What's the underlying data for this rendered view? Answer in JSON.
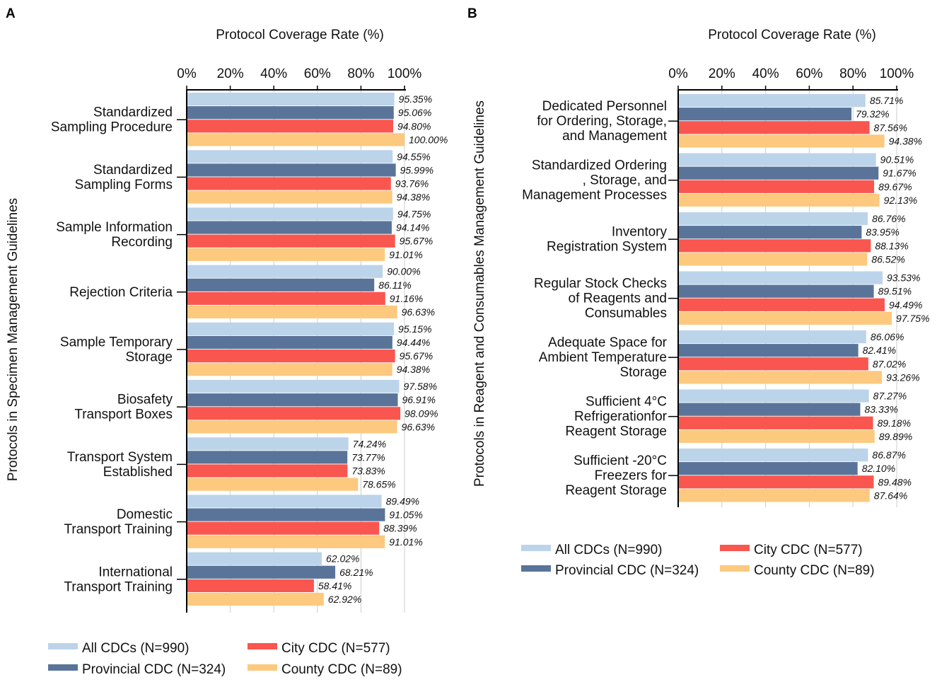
{
  "colors": {
    "all": "#bcd4ea",
    "provincial": "#5a7499",
    "city": "#f9564f",
    "county": "#fcc97f",
    "axis": "#000000",
    "grid": "#cccccc"
  },
  "chart_data": [
    {
      "type": "bar",
      "orientation": "horizontal",
      "panel": "A",
      "title": "Protocol Coverage Rate (%)",
      "xlabel": "Protocol Coverage Rate (%)",
      "ylabel": "Protocols in Specimen Management Guidelines",
      "xlim": [
        0,
        100
      ],
      "xticks": [
        "0%",
        "20%",
        "40%",
        "60%",
        "80%",
        "100%"
      ],
      "grid": true,
      "legend_position": "bottom",
      "categories": [
        [
          "Standardized",
          "Sampling Procedure"
        ],
        [
          "Standardized",
          "Sampling Forms"
        ],
        [
          "Sample Information",
          "Recording"
        ],
        [
          "Rejection Criteria"
        ],
        [
          "Sample Temporary",
          "Storage"
        ],
        [
          "Biosafety",
          "Transport Boxes"
        ],
        [
          "Transport System",
          "Established"
        ],
        [
          "Domestic",
          "Transport Training"
        ],
        [
          "International",
          "Transport Training"
        ]
      ],
      "series": [
        {
          "key": "all",
          "name": "All CDCs (N=990)",
          "values": [
            95.35,
            94.55,
            94.75,
            90.0,
            95.15,
            97.58,
            74.24,
            89.49,
            62.02
          ],
          "labels": [
            "95.35%",
            "94.55%",
            "94.75%",
            "90.00%",
            "95.15%",
            "97.58%",
            "74.24%",
            "89.49%",
            "62.02%"
          ]
        },
        {
          "key": "provincial",
          "name": "Provincial CDC (N=324)",
          "values": [
            95.06,
            95.99,
            94.14,
            86.11,
            94.44,
            96.91,
            73.77,
            91.05,
            68.21
          ],
          "labels": [
            "95.06%",
            "95.99%",
            "94.14%",
            "86.11%",
            "94.44%",
            "96.91%",
            "73.77%",
            "91.05%",
            "68.21%"
          ]
        },
        {
          "key": "city",
          "name": "City CDC (N=577)",
          "values": [
            94.8,
            93.76,
            95.67,
            91.16,
            95.67,
            98.09,
            73.83,
            88.39,
            58.41
          ],
          "labels": [
            "94.80%",
            "93.76%",
            "95.67%",
            "91.16%",
            "95.67%",
            "98.09%",
            "73.83%",
            "88.39%",
            "58.41%"
          ]
        },
        {
          "key": "county",
          "name": "County CDC (N=89)",
          "values": [
            100.0,
            94.38,
            91.01,
            96.63,
            94.38,
            96.63,
            78.65,
            91.01,
            62.92
          ],
          "labels": [
            "100.00%",
            "94.38%",
            "91.01%",
            "96.63%",
            "94.38%",
            "96.63%",
            "78.65%",
            "91.01%",
            "62.92%"
          ]
        }
      ]
    },
    {
      "type": "bar",
      "orientation": "horizontal",
      "panel": "B",
      "title": "Protocol Coverage Rate  (%)",
      "xlabel": "Protocol Coverage Rate  (%)",
      "ylabel": "Protocols in Reagent and Consumables Management Guidelines",
      "xlim": [
        0,
        100
      ],
      "xticks": [
        "0%",
        "20%",
        "40%",
        "60%",
        "80%",
        "100%"
      ],
      "grid": true,
      "legend_position": "bottom",
      "categories": [
        [
          "Dedicated Personnel",
          "for Ordering, Storage,",
          "and Management"
        ],
        [
          "Standardized Ordering",
          ", Storage, and",
          "Management Processes"
        ],
        [
          "Inventory",
          "Registration System"
        ],
        [
          "Regular Stock Checks",
          "of Reagents and",
          "Consumables"
        ],
        [
          "Adequate Space for",
          "Ambient Temperature",
          "Storage"
        ],
        [
          "Sufficient 4°C",
          "Refrigerationfor",
          "Reagent Storage"
        ],
        [
          "Sufficient -20°C",
          "Freezers for",
          "Reagent Storage"
        ]
      ],
      "series": [
        {
          "key": "all",
          "name": "All CDCs (N=990)",
          "values": [
            85.71,
            90.51,
            86.76,
            93.53,
            86.06,
            87.27,
            86.87
          ],
          "labels": [
            "85.71%",
            "90.51%",
            "86.76%",
            "93.53%",
            "86.06%",
            "87.27%",
            "86.87%"
          ]
        },
        {
          "key": "provincial",
          "name": "Provincial CDC (N=324)",
          "values": [
            79.32,
            91.67,
            83.95,
            89.51,
            82.41,
            83.33,
            82.1
          ],
          "labels": [
            "79.32%",
            "91.67%",
            "83.95%",
            "89.51%",
            "82.41%",
            "83.33%",
            "82.10%"
          ]
        },
        {
          "key": "city",
          "name": "City CDC (N=577)",
          "values": [
            87.56,
            89.67,
            88.13,
            94.49,
            87.02,
            89.18,
            89.48
          ],
          "labels": [
            "87.56%",
            "89.67%",
            "88.13%",
            "94.49%",
            "87.02%",
            "89.18%",
            "89.48%"
          ]
        },
        {
          "key": "county",
          "name": "County CDC (N=89)",
          "values": [
            94.38,
            92.13,
            86.52,
            97.75,
            93.26,
            89.89,
            87.64
          ],
          "labels": [
            "94.38%",
            "92.13%",
            "86.52%",
            "97.75%",
            "93.26%",
            "89.89%",
            "87.64%"
          ]
        }
      ]
    }
  ]
}
